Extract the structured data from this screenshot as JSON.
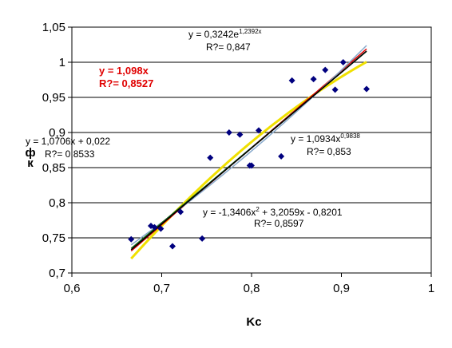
{
  "chart_data": {
    "type": "scatter",
    "xlabel": "Kc",
    "ylabel": "ф\nк",
    "xlim": [
      0.6,
      1.0
    ],
    "ylim": [
      0.7,
      1.05
    ],
    "x_ticks": [
      "0,6",
      "0,7",
      "0,8",
      "0,9",
      "1"
    ],
    "y_ticks": [
      "0,7",
      "0,75",
      "0,8",
      "0,85",
      "0,9",
      "0,95",
      "1",
      "1,05"
    ],
    "x_tick_values": [
      0.6,
      0.7,
      0.8,
      0.9,
      1.0
    ],
    "y_tick_values": [
      0.7,
      0.75,
      0.8,
      0.85,
      0.9,
      0.95,
      1.0,
      1.05
    ],
    "grid": "horizontal",
    "points": {
      "color": "#00007f",
      "x": [
        0.666,
        0.688,
        0.692,
        0.699,
        0.712,
        0.721,
        0.745,
        0.754,
        0.775,
        0.787,
        0.798,
        0.8,
        0.808,
        0.833,
        0.845,
        0.869,
        0.882,
        0.893,
        0.902,
        0.928
      ],
      "y": [
        0.748,
        0.767,
        0.765,
        0.763,
        0.738,
        0.787,
        0.749,
        0.864,
        0.9,
        0.897,
        0.853,
        0.853,
        0.903,
        0.866,
        0.974,
        0.976,
        0.989,
        0.961,
        1.0,
        0.962
      ]
    },
    "trendlines": [
      {
        "kind": "linear0",
        "a": 1.098,
        "color": "#e00000",
        "label": "y = 1,098x",
        "r2_label": "R?= 0,8527"
      },
      {
        "kind": "linear",
        "a": 1.0706,
        "b": 0.022,
        "color": "#1a6b1a",
        "label": "y = 1,0706x + 0,022",
        "r2_label": "R?= 0,8533"
      },
      {
        "kind": "exp",
        "a": 0.3242,
        "k": 1.2392,
        "color": "#88aacc",
        "label_base": "y = 0,3242e",
        "label_sup": "1,2392x",
        "r2_label": "R?= 0,847"
      },
      {
        "kind": "power",
        "a": 1.0934,
        "k": 0.9838,
        "color": "#000000",
        "label_base": "y = 1,0934x",
        "label_sup": "0,9838",
        "r2_label": "R?= 0,853"
      },
      {
        "kind": "poly2",
        "a": -1.3406,
        "b": 3.2059,
        "c": -0.8201,
        "color": "#f0e000",
        "label_base": "y = -1,3406x",
        "label_sup": "2",
        "label_rest": " + 3,2059x - 0,8201",
        "r2_label": "R?= 0,8597"
      }
    ],
    "trend_range": [
      0.666,
      0.928
    ]
  }
}
